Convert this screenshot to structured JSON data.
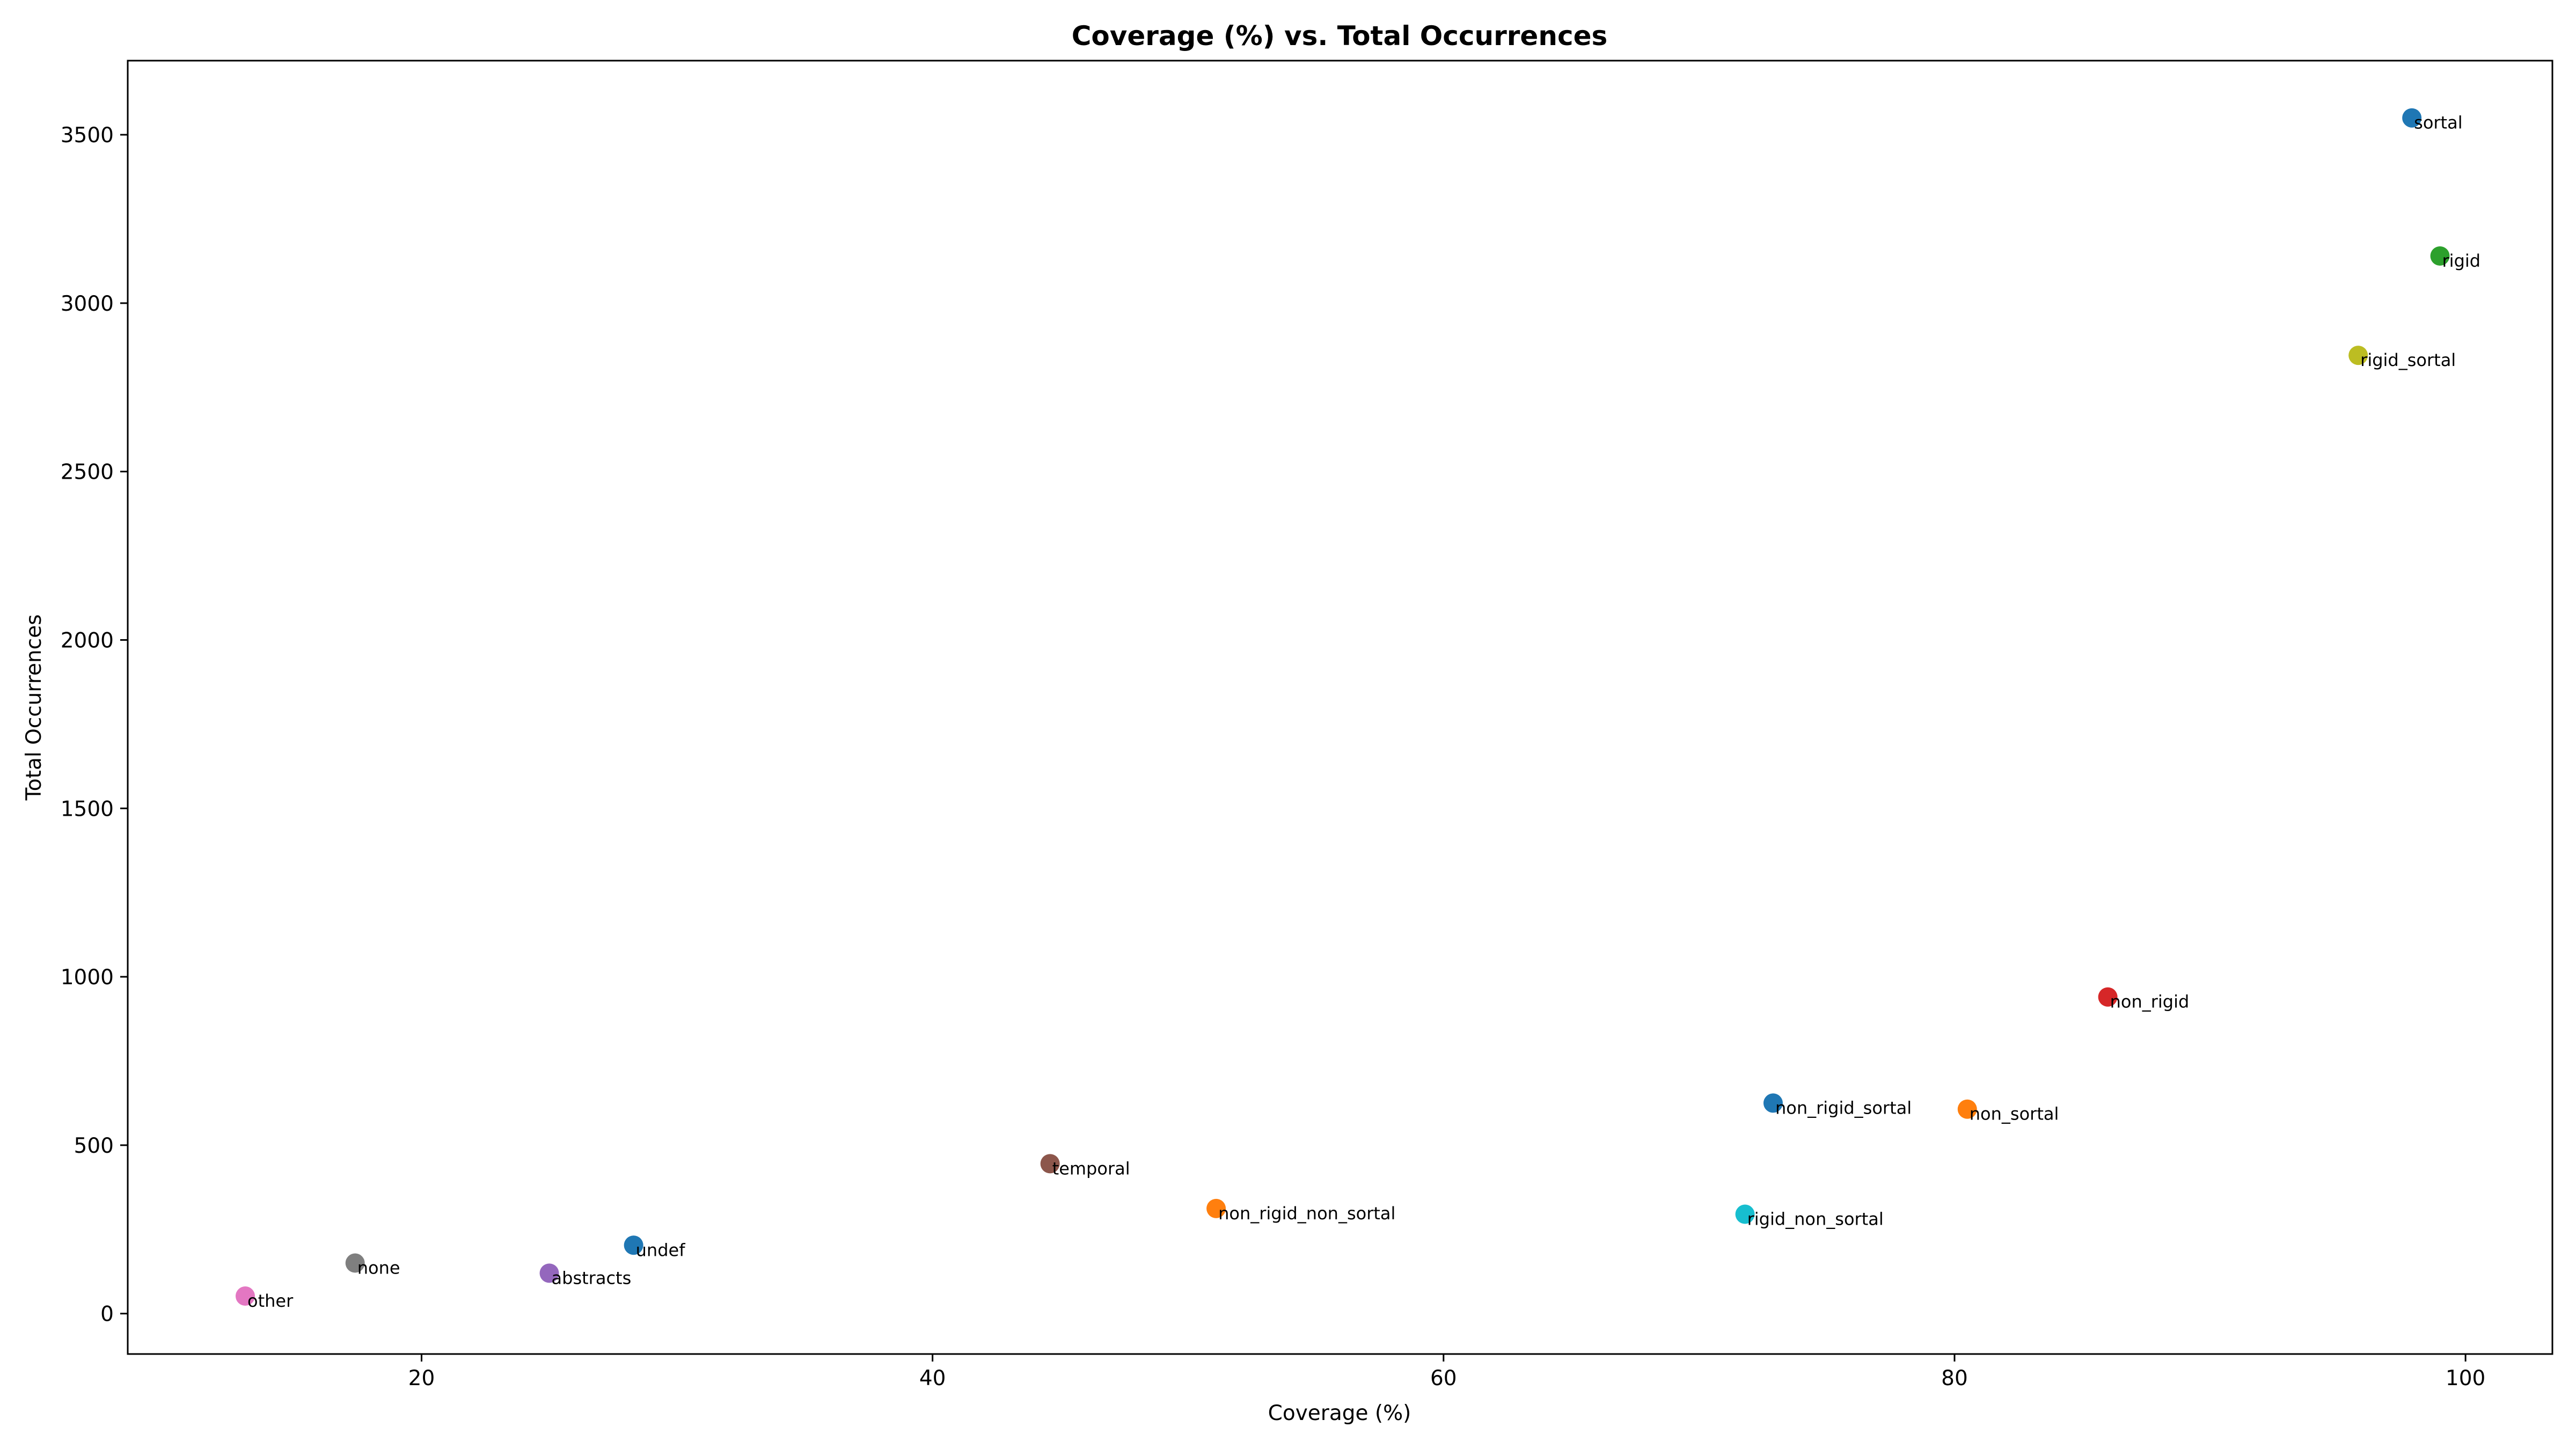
{
  "chart_data": {
    "type": "scatter",
    "title": "Coverage (%) vs. Total Occurrences",
    "xlabel": "Coverage (%)",
    "ylabel": "Total Occurrences",
    "xlim": [
      8.5,
      103.4
    ],
    "ylim": [
      -120,
      3720
    ],
    "xticks": [
      20,
      40,
      60,
      80,
      100
    ],
    "yticks": [
      0,
      500,
      1000,
      1500,
      2000,
      2500,
      3000,
      3500
    ],
    "grid": false,
    "points": [
      {
        "label": "sortal",
        "x": 97.9,
        "y": 3550,
        "color": "#1f77b4"
      },
      {
        "label": "rigid",
        "x": 99.0,
        "y": 3140,
        "color": "#2ca02c"
      },
      {
        "label": "rigid_sortal",
        "x": 95.8,
        "y": 2845,
        "color": "#bcbd22"
      },
      {
        "label": "non_rigid",
        "x": 86.0,
        "y": 940,
        "color": "#d62728"
      },
      {
        "label": "non_rigid_sortal",
        "x": 72.9,
        "y": 625,
        "color": "#1f77b4"
      },
      {
        "label": "non_sortal",
        "x": 80.5,
        "y": 607,
        "color": "#ff7f0e"
      },
      {
        "label": "temporal",
        "x": 44.6,
        "y": 445,
        "color": "#8c564b"
      },
      {
        "label": "non_rigid_non_sortal",
        "x": 51.1,
        "y": 312,
        "color": "#ff7f0e"
      },
      {
        "label": "rigid_non_sortal",
        "x": 71.8,
        "y": 295,
        "color": "#17becf"
      },
      {
        "label": "undef",
        "x": 28.3,
        "y": 203,
        "color": "#1f77b4"
      },
      {
        "label": "none",
        "x": 17.4,
        "y": 150,
        "color": "#7f7f7f"
      },
      {
        "label": "abstracts",
        "x": 25.0,
        "y": 120,
        "color": "#9467bd"
      },
      {
        "label": "other",
        "x": 13.1,
        "y": 52,
        "color": "#e377c2"
      }
    ]
  }
}
